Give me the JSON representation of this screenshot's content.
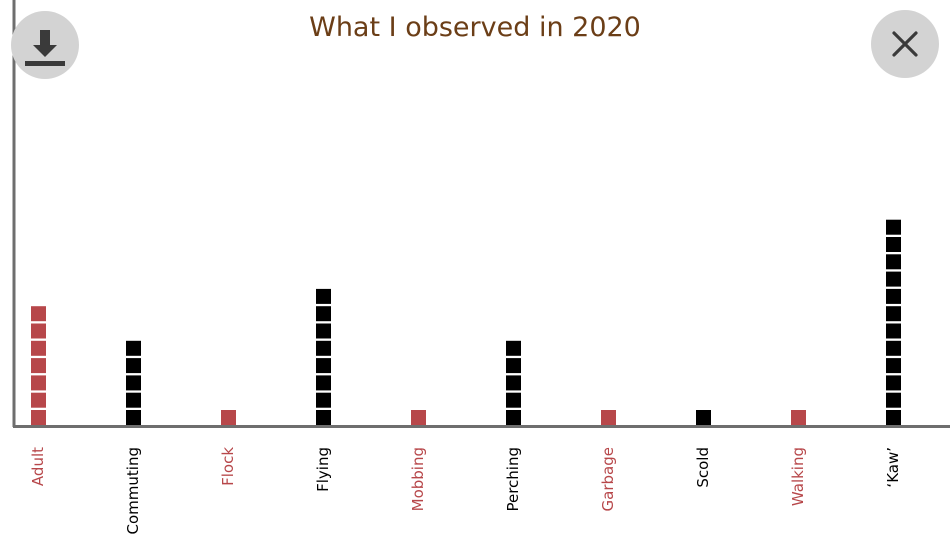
{
  "buttons": {
    "download_icon": "download-icon",
    "close_icon": "close-icon"
  },
  "colors": {
    "title": "#6b3e17",
    "red": "#b7474a",
    "black": "#000000",
    "axis": "#6e6e6e",
    "button_bg": "#d3d3d3",
    "button_fg": "#3a3a3a"
  },
  "chart_data": {
    "type": "bar",
    "style": "stacked squares (one square per observation)",
    "title": "What I observed in 2020",
    "xlabel": "",
    "ylabel": "",
    "ylim": [
      0,
      12
    ],
    "grid": false,
    "categories": [
      "Adult",
      "Commuting",
      "Flock",
      "Flying",
      "Mobbing",
      "Perching",
      "Garbage",
      "Scold",
      "Walking",
      "‘Kaw’"
    ],
    "values": [
      7,
      5,
      1,
      8,
      1,
      5,
      1,
      1,
      1,
      12
    ],
    "category_colors": [
      "#b7474a",
      "#000000",
      "#b7474a",
      "#000000",
      "#b7474a",
      "#000000",
      "#b7474a",
      "#000000",
      "#b7474a",
      "#000000"
    ]
  }
}
